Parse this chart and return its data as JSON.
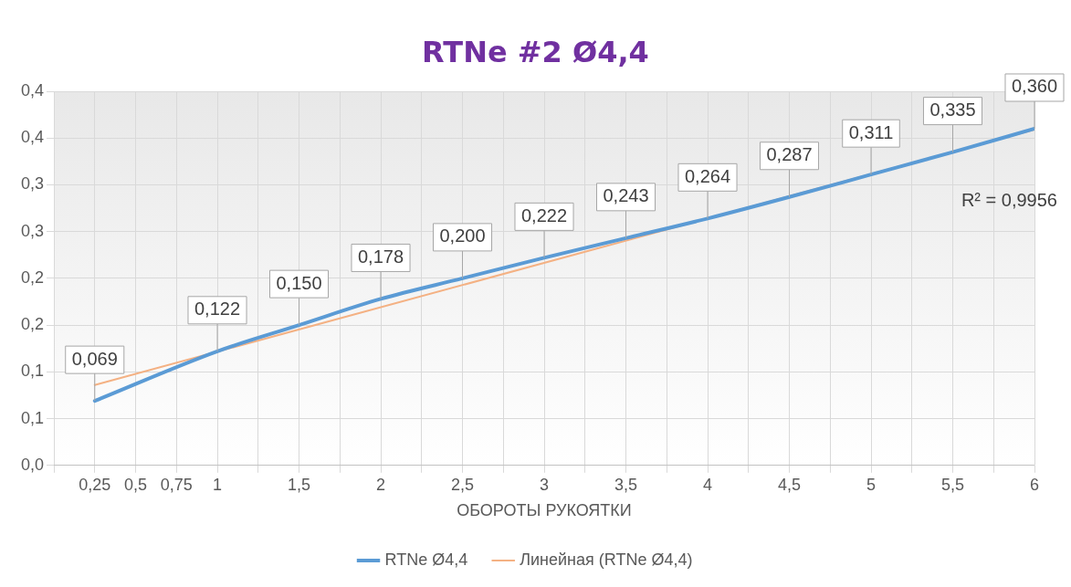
{
  "chart_data": {
    "type": "line",
    "title": "RTNe #2 Ø4,4",
    "xlabel": "ОБОРОТЫ РУКОЯТКИ",
    "xlim": [
      0,
      6
    ],
    "xticks": [
      {
        "value": 0,
        "label": null
      },
      {
        "value": 0.25,
        "label": "0,25"
      },
      {
        "value": 0.5,
        "label": "0,5"
      },
      {
        "value": 0.75,
        "label": "0,75"
      },
      {
        "value": 1,
        "label": "1"
      },
      {
        "value": 1.25,
        "label": null
      },
      {
        "value": 1.5,
        "label": "1,5"
      },
      {
        "value": 1.75,
        "label": null
      },
      {
        "value": 2,
        "label": "2"
      },
      {
        "value": 2.25,
        "label": null
      },
      {
        "value": 2.5,
        "label": "2,5"
      },
      {
        "value": 2.75,
        "label": null
      },
      {
        "value": 3,
        "label": "3"
      },
      {
        "value": 3.25,
        "label": null
      },
      {
        "value": 3.5,
        "label": "3,5"
      },
      {
        "value": 3.75,
        "label": null
      },
      {
        "value": 4,
        "label": "4"
      },
      {
        "value": 4.25,
        "label": null
      },
      {
        "value": 4.5,
        "label": "4,5"
      },
      {
        "value": 4.75,
        "label": null
      },
      {
        "value": 5,
        "label": "5"
      },
      {
        "value": 5.25,
        "label": null
      },
      {
        "value": 5.5,
        "label": "5,5"
      },
      {
        "value": 5.75,
        "label": null
      },
      {
        "value": 6,
        "label": "6"
      }
    ],
    "ylim": [
      0,
      0.4
    ],
    "yticks": [
      {
        "value": 0,
        "label": "0,0"
      },
      {
        "value": 0.05,
        "label": "0,1"
      },
      {
        "value": 0.1,
        "label": "0,1"
      },
      {
        "value": 0.15,
        "label": "0,2"
      },
      {
        "value": 0.2,
        "label": "0,2"
      },
      {
        "value": 0.25,
        "label": "0,3"
      },
      {
        "value": 0.3,
        "label": "0,3"
      },
      {
        "value": 0.35,
        "label": "0,4"
      },
      {
        "value": 0.4,
        "label": "0,4"
      }
    ],
    "series": [
      {
        "name": "RTNe Ø4,4",
        "color": "#5b9bd5",
        "x": [
          0.25,
          1,
          1.5,
          2,
          2.5,
          3,
          3.5,
          4,
          4.5,
          5,
          5.5,
          6
        ],
        "values": [
          0.069,
          0.122,
          0.15,
          0.178,
          0.2,
          0.222,
          0.243,
          0.264,
          0.287,
          0.311,
          0.335,
          0.36
        ],
        "value_labels": [
          "0,069",
          "0,122",
          "0,150",
          "0,178",
          "0,200",
          "0,222",
          "0,243",
          "0,264",
          "0,287",
          "0,311",
          "0,335",
          "0,360"
        ]
      },
      {
        "name": "Линейная (RTNe Ø4,4)",
        "color": "#f4b183",
        "x": [
          0.25,
          6
        ],
        "values": [
          0.086,
          0.359
        ]
      }
    ],
    "annotations": [
      "R² = 0,9956"
    ],
    "grid": true,
    "legend": "bottom",
    "marker": "none",
    "line_style": "solid"
  }
}
